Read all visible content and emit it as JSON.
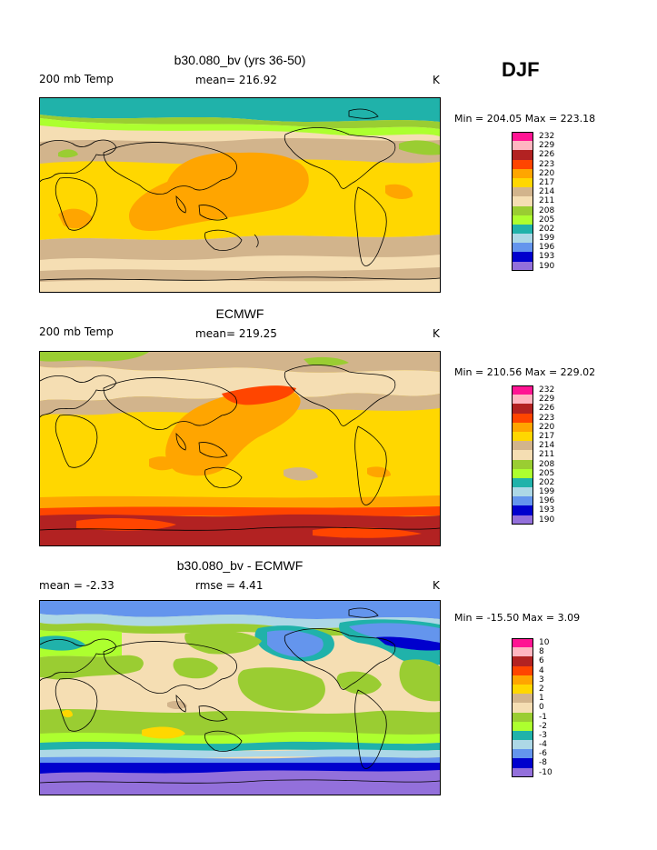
{
  "season": "DJF",
  "panels": [
    {
      "title": "b30.080_bv (yrs 36-50)",
      "left_label": "200 mb Temp",
      "mid_label": "mean= 216.92",
      "unit": "K",
      "minmax": "Min = 204.05 Max = 223.18",
      "legend": [
        "232",
        "229",
        "226",
        "223",
        "220",
        "217",
        "214",
        "211",
        "208",
        "205",
        "202",
        "199",
        "196",
        "193",
        "190"
      ],
      "colors": [
        "#ff1493",
        "#ffb6c1",
        "#b22222",
        "#ff4500",
        "#ffa500",
        "#ffd700",
        "#d2b48c",
        "#f5deb3",
        "#9acd32",
        "#adff2f",
        "#20b2aa",
        "#add8e6",
        "#6495ed",
        "#0000cd",
        "#9370db"
      ]
    },
    {
      "title": "ECMWF",
      "left_label": "200 mb Temp",
      "mid_label": "mean= 219.25",
      "unit": "K",
      "minmax": "Min = 210.56 Max = 229.02",
      "legend": [
        "232",
        "229",
        "226",
        "223",
        "220",
        "217",
        "214",
        "211",
        "208",
        "205",
        "202",
        "199",
        "196",
        "193",
        "190"
      ],
      "colors": [
        "#ff1493",
        "#ffb6c1",
        "#b22222",
        "#ff4500",
        "#ffa500",
        "#ffd700",
        "#d2b48c",
        "#f5deb3",
        "#9acd32",
        "#adff2f",
        "#20b2aa",
        "#add8e6",
        "#6495ed",
        "#0000cd",
        "#9370db"
      ]
    },
    {
      "title": "b30.080_bv - ECMWF",
      "left_label": "mean =   -2.33",
      "mid_label": "rmse =   4.41",
      "unit": "K",
      "minmax": "Min = -15.50 Max =   3.09",
      "legend": [
        "10",
        "8",
        "6",
        "4",
        "3",
        "2",
        "1",
        "0",
        "-1",
        "-2",
        "-3",
        "-4",
        "-6",
        "-8",
        "-10"
      ],
      "colors": [
        "#ff1493",
        "#ffb6c1",
        "#b22222",
        "#ff4500",
        "#ffa500",
        "#ffd700",
        "#d2b48c",
        "#f5deb3",
        "#9acd32",
        "#adff2f",
        "#20b2aa",
        "#add8e6",
        "#6495ed",
        "#0000cd",
        "#9370db"
      ]
    }
  ]
}
